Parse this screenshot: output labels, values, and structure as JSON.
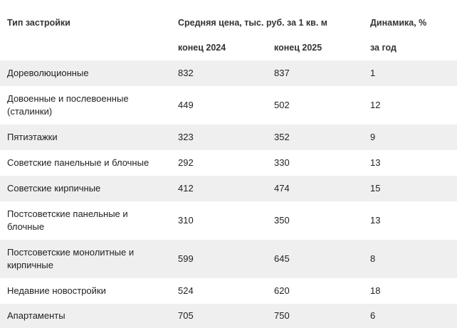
{
  "header": {
    "type_col": "Тип застройки",
    "price_group": "Средняя цена, тыс. руб. за 1 кв. м",
    "dynamics": "Динамика, %",
    "subheaders": [
      "конец 2024",
      "конец 2025",
      "за год"
    ]
  },
  "table": {
    "rows": [
      [
        "Дореволюционные",
        832,
        837,
        1
      ],
      [
        "Довоенные и послевоенные (сталинки)",
        449,
        502,
        12
      ],
      [
        "Пятиэтажки",
        323,
        352,
        9
      ],
      [
        "Советские панельные и блочные",
        292,
        330,
        13
      ],
      [
        "Советские кирпичные",
        412,
        474,
        15
      ],
      [
        "Постсоветские панельные и блочные",
        310,
        350,
        13
      ],
      [
        "Постсоветские монолитные и кирпичные",
        599,
        645,
        8
      ],
      [
        "Недавние новостройки",
        524,
        620,
        18
      ],
      [
        "Апартаменты",
        705,
        750,
        6
      ]
    ]
  }
}
